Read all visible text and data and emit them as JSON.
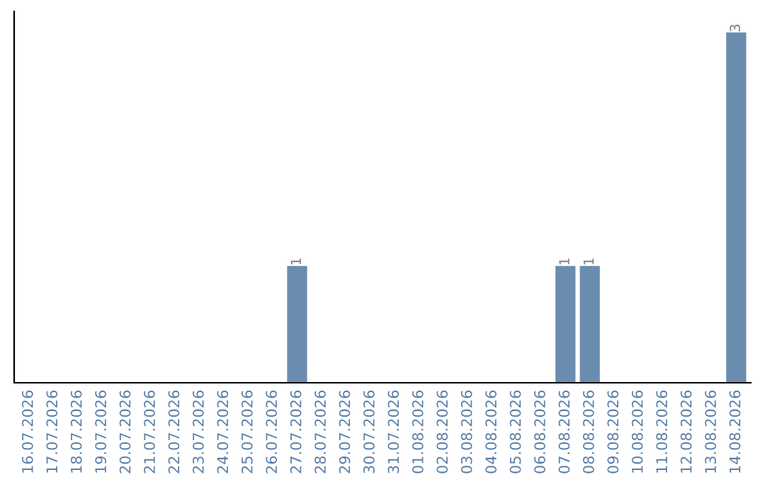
{
  "chart_data": {
    "type": "bar",
    "categories": [
      "16.07.2026",
      "17.07.2026",
      "18.07.2026",
      "19.07.2026",
      "20.07.2026",
      "21.07.2026",
      "22.07.2026",
      "23.07.2026",
      "24.07.2026",
      "25.07.2026",
      "26.07.2026",
      "27.07.2026",
      "28.07.2026",
      "29.07.2026",
      "30.07.2026",
      "31.07.2026",
      "01.08.2026",
      "02.08.2026",
      "03.08.2026",
      "04.08.2026",
      "05.08.2026",
      "06.08.2026",
      "07.08.2026",
      "08.08.2026",
      "09.08.2026",
      "10.08.2026",
      "11.08.2026",
      "12.08.2026",
      "13.08.2026",
      "14.08.2026"
    ],
    "values": [
      0,
      0,
      0,
      0,
      0,
      0,
      0,
      0,
      0,
      0,
      0,
      1,
      0,
      0,
      0,
      0,
      0,
      0,
      0,
      0,
      0,
      0,
      1,
      1,
      0,
      0,
      0,
      0,
      0,
      3
    ],
    "value_labels": [
      null,
      null,
      null,
      null,
      null,
      null,
      null,
      null,
      null,
      null,
      null,
      "1",
      null,
      null,
      null,
      null,
      null,
      null,
      null,
      null,
      null,
      null,
      "1",
      "1",
      null,
      null,
      null,
      null,
      null,
      "3"
    ],
    "color": "#6a8caf",
    "tick_labels": "x",
    "grid": false,
    "legend": false
  }
}
